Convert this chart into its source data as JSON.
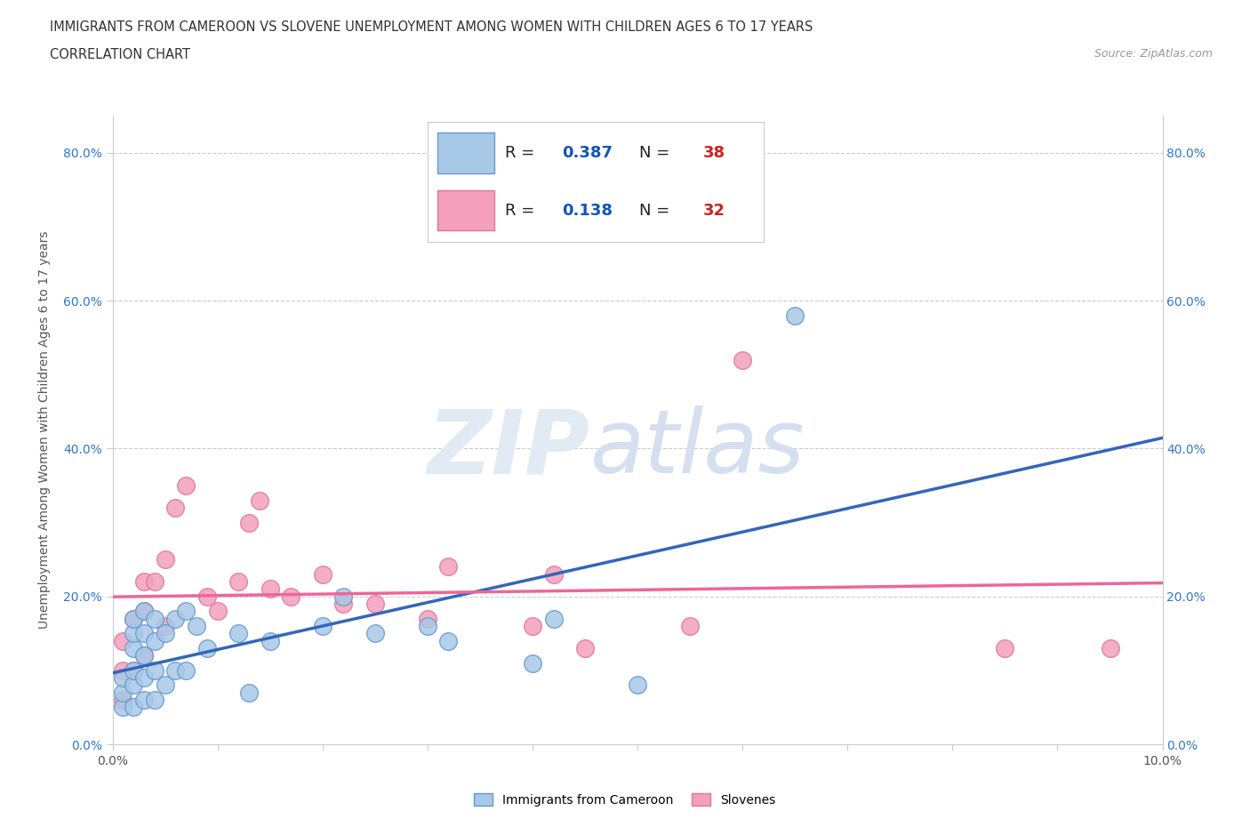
{
  "title_line1": "IMMIGRANTS FROM CAMEROON VS SLOVENE UNEMPLOYMENT AMONG WOMEN WITH CHILDREN AGES 6 TO 17 YEARS",
  "title_line2": "CORRELATION CHART",
  "source_text": "Source: ZipAtlas.com",
  "ylabel": "Unemployment Among Women with Children Ages 6 to 17 years",
  "xlim": [
    0.0,
    0.1
  ],
  "ylim": [
    0.0,
    0.85
  ],
  "y_ticks": [
    0.0,
    0.2,
    0.4,
    0.6,
    0.8
  ],
  "x_ticks": [
    0.0,
    0.01,
    0.02,
    0.03,
    0.04,
    0.05,
    0.06,
    0.07,
    0.08,
    0.09,
    0.1
  ],
  "blue_color": "#A8C8E8",
  "pink_color": "#F4A0BC",
  "blue_edge_color": "#6699CC",
  "pink_edge_color": "#DD7799",
  "blue_line_color": "#3366BB",
  "pink_line_color": "#EE6699",
  "legend_R_color": "#1155BB",
  "legend_N_color": "#CC2222",
  "blue_scatter_x": [
    0.001,
    0.001,
    0.001,
    0.002,
    0.002,
    0.002,
    0.002,
    0.002,
    0.002,
    0.003,
    0.003,
    0.003,
    0.003,
    0.003,
    0.004,
    0.004,
    0.004,
    0.004,
    0.005,
    0.005,
    0.006,
    0.006,
    0.007,
    0.007,
    0.008,
    0.009,
    0.012,
    0.013,
    0.015,
    0.02,
    0.022,
    0.025,
    0.03,
    0.032,
    0.04,
    0.042,
    0.05,
    0.065
  ],
  "blue_scatter_y": [
    0.05,
    0.07,
    0.09,
    0.05,
    0.08,
    0.1,
    0.13,
    0.15,
    0.17,
    0.06,
    0.09,
    0.12,
    0.15,
    0.18,
    0.06,
    0.1,
    0.14,
    0.17,
    0.08,
    0.15,
    0.1,
    0.17,
    0.1,
    0.18,
    0.16,
    0.13,
    0.15,
    0.07,
    0.14,
    0.16,
    0.2,
    0.15,
    0.16,
    0.14,
    0.11,
    0.17,
    0.08,
    0.58
  ],
  "pink_scatter_x": [
    0.001,
    0.001,
    0.001,
    0.002,
    0.002,
    0.003,
    0.003,
    0.003,
    0.004,
    0.005,
    0.005,
    0.006,
    0.007,
    0.009,
    0.01,
    0.012,
    0.013,
    0.014,
    0.015,
    0.017,
    0.02,
    0.022,
    0.025,
    0.03,
    0.032,
    0.04,
    0.042,
    0.045,
    0.055,
    0.06,
    0.085,
    0.095
  ],
  "pink_scatter_y": [
    0.06,
    0.1,
    0.14,
    0.1,
    0.17,
    0.12,
    0.18,
    0.22,
    0.22,
    0.16,
    0.25,
    0.32,
    0.35,
    0.2,
    0.18,
    0.22,
    0.3,
    0.33,
    0.21,
    0.2,
    0.23,
    0.19,
    0.19,
    0.17,
    0.24,
    0.16,
    0.23,
    0.13,
    0.16,
    0.52,
    0.13,
    0.13
  ],
  "watermark_zip_color": "#D8E4F0",
  "watermark_atlas_color": "#D0DCF0"
}
